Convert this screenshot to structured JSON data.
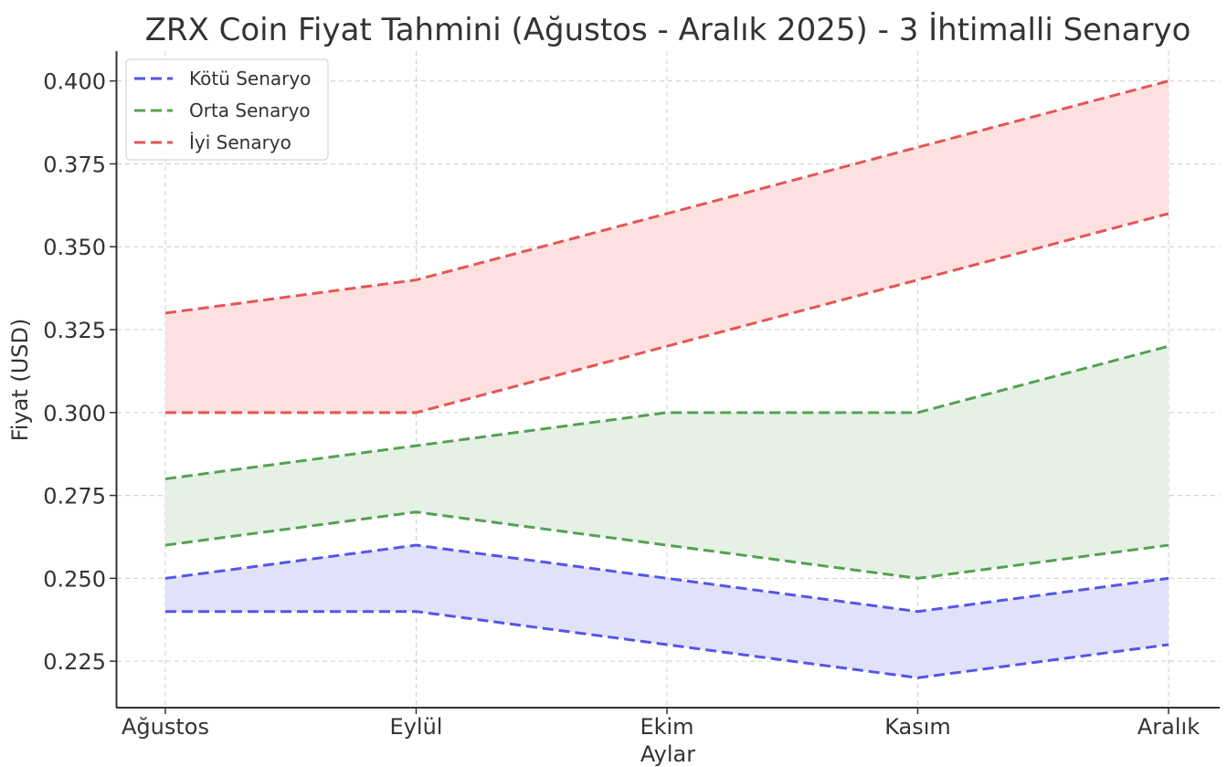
{
  "chart_data": {
    "type": "area",
    "title": "ZRX Coin Fiyat Tahmini (Ağustos - Aralık 2025) - 3 İhtimalli Senaryo",
    "xlabel": "Aylar",
    "ylabel": "Fiyat (USD)",
    "categories": [
      "Ağustos",
      "Eylül",
      "Ekim",
      "Kasım",
      "Aralık"
    ],
    "ylim": [
      0.211,
      0.409
    ],
    "yticks": [
      0.225,
      0.25,
      0.275,
      0.3,
      0.325,
      0.35,
      0.375,
      0.4
    ],
    "ytick_labels": [
      "0.225",
      "0.250",
      "0.275",
      "0.300",
      "0.325",
      "0.350",
      "0.375",
      "0.400"
    ],
    "grid": true,
    "legend_position": "top-left",
    "series": [
      {
        "name": "Kötü Senaryo",
        "color": "#5555e6",
        "fill": "#e1e1fa",
        "low": [
          0.24,
          0.24,
          0.23,
          0.22,
          0.23
        ],
        "high": [
          0.25,
          0.26,
          0.25,
          0.24,
          0.25
        ]
      },
      {
        "name": "Orta Senaryo",
        "color": "#55a055",
        "fill": "#e4f1e4",
        "low": [
          0.26,
          0.27,
          0.26,
          0.25,
          0.26
        ],
        "high": [
          0.28,
          0.29,
          0.3,
          0.3,
          0.32
        ]
      },
      {
        "name": "İyi Senaryo",
        "color": "#e65555",
        "fill": "#fde1e1",
        "low": [
          0.3,
          0.3,
          0.32,
          0.34,
          0.36
        ],
        "high": [
          0.33,
          0.34,
          0.36,
          0.38,
          0.4
        ]
      }
    ]
  }
}
